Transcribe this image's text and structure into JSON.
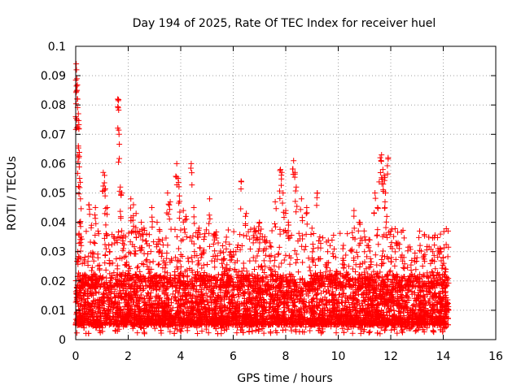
{
  "chart_data": {
    "type": "scatter",
    "title": "Day 194 of 2025, Rate Of TEC Index for receiver huel",
    "xlabel": "GPS time / hours",
    "ylabel": "ROTI / TECUs",
    "xlim": [
      0,
      16
    ],
    "ylim": [
      0,
      0.1
    ],
    "x_ticks": [
      "0",
      "2",
      "4",
      "6",
      "8",
      "10",
      "12",
      "14",
      "16"
    ],
    "y_ticks": [
      "0",
      "0.01",
      "0.02",
      "0.03",
      "0.04",
      "0.05",
      "0.06",
      "0.07",
      "0.08",
      "0.09",
      "0.1"
    ],
    "grid": true,
    "marker": "+",
    "marker_color": "#ff0000",
    "series": [
      {
        "points": [
          [
            0.0,
            0.076
          ],
          [
            0.02,
            0.094
          ],
          [
            0.03,
            0.092
          ],
          [
            0.05,
            0.085
          ],
          [
            0.07,
            0.082
          ],
          [
            0.1,
            0.077
          ],
          [
            0.12,
            0.072
          ],
          [
            0.1,
            0.066
          ],
          [
            0.12,
            0.062
          ],
          [
            0.15,
            0.055
          ],
          [
            0.18,
            0.048
          ],
          [
            0.15,
            0.04
          ],
          [
            0.2,
            0.035
          ],
          [
            0.08,
            0.03
          ],
          [
            0.5,
            0.046
          ],
          [
            0.6,
            0.039
          ],
          [
            0.75,
            0.045
          ],
          [
            0.85,
            0.037
          ],
          [
            1.05,
            0.057
          ],
          [
            1.1,
            0.056
          ],
          [
            1.12,
            0.049
          ],
          [
            1.2,
            0.045
          ],
          [
            1.3,
            0.03
          ],
          [
            1.45,
            0.035
          ],
          [
            1.6,
            0.082
          ],
          [
            1.62,
            0.079
          ],
          [
            1.65,
            0.07
          ],
          [
            1.7,
            0.052
          ],
          [
            1.75,
            0.05
          ],
          [
            1.9,
            0.035
          ],
          [
            2.1,
            0.048
          ],
          [
            2.2,
            0.046
          ],
          [
            2.3,
            0.043
          ],
          [
            2.5,
            0.04
          ],
          [
            2.6,
            0.038
          ],
          [
            2.7,
            0.036
          ],
          [
            2.8,
            0.032
          ],
          [
            2.9,
            0.045
          ],
          [
            3.1,
            0.04
          ],
          [
            3.2,
            0.037
          ],
          [
            3.3,
            0.034
          ],
          [
            3.5,
            0.05
          ],
          [
            3.6,
            0.047
          ],
          [
            3.85,
            0.06
          ],
          [
            3.9,
            0.055
          ],
          [
            3.95,
            0.049
          ],
          [
            4.1,
            0.044
          ],
          [
            4.2,
            0.042
          ],
          [
            4.4,
            0.06
          ],
          [
            4.5,
            0.045
          ],
          [
            4.7,
            0.038
          ],
          [
            4.9,
            0.035
          ],
          [
            5.1,
            0.048
          ],
          [
            5.3,
            0.036
          ],
          [
            5.6,
            0.032
          ],
          [
            5.9,
            0.03
          ],
          [
            6.1,
            0.03
          ],
          [
            6.3,
            0.054
          ],
          [
            6.5,
            0.043
          ],
          [
            6.8,
            0.038
          ],
          [
            7.0,
            0.04
          ],
          [
            7.2,
            0.035
          ],
          [
            7.4,
            0.033
          ],
          [
            7.6,
            0.047
          ],
          [
            7.8,
            0.058
          ],
          [
            7.85,
            0.057
          ],
          [
            7.9,
            0.05
          ],
          [
            8.0,
            0.044
          ],
          [
            8.1,
            0.04
          ],
          [
            8.3,
            0.061
          ],
          [
            8.35,
            0.057
          ],
          [
            8.4,
            0.052
          ],
          [
            8.6,
            0.048
          ],
          [
            8.8,
            0.045
          ],
          [
            9.0,
            0.038
          ],
          [
            9.2,
            0.05
          ],
          [
            9.3,
            0.035
          ],
          [
            9.6,
            0.03
          ],
          [
            9.9,
            0.028
          ],
          [
            10.2,
            0.027
          ],
          [
            10.4,
            0.025
          ],
          [
            10.6,
            0.044
          ],
          [
            10.8,
            0.04
          ],
          [
            11.0,
            0.03
          ],
          [
            11.2,
            0.034
          ],
          [
            11.4,
            0.05
          ],
          [
            11.5,
            0.045
          ],
          [
            11.6,
            0.062
          ],
          [
            11.65,
            0.063
          ],
          [
            11.7,
            0.058
          ],
          [
            11.75,
            0.056
          ],
          [
            11.8,
            0.05
          ],
          [
            11.85,
            0.042
          ],
          [
            11.9,
            0.062
          ],
          [
            12.0,
            0.037
          ],
          [
            12.2,
            0.033
          ],
          [
            12.5,
            0.028
          ],
          [
            12.8,
            0.027
          ],
          [
            13.1,
            0.037
          ],
          [
            13.3,
            0.029
          ],
          [
            13.6,
            0.03
          ],
          [
            13.8,
            0.031
          ],
          [
            14.0,
            0.028
          ],
          [
            14.1,
            0.024
          ]
        ],
        "envelope": {
          "description": "dense cluster of ROTI samples, x from 0 to 14.2 h",
          "base_min": 0.002,
          "typical_min": 0.005,
          "typical_max": 0.02
        }
      }
    ]
  }
}
